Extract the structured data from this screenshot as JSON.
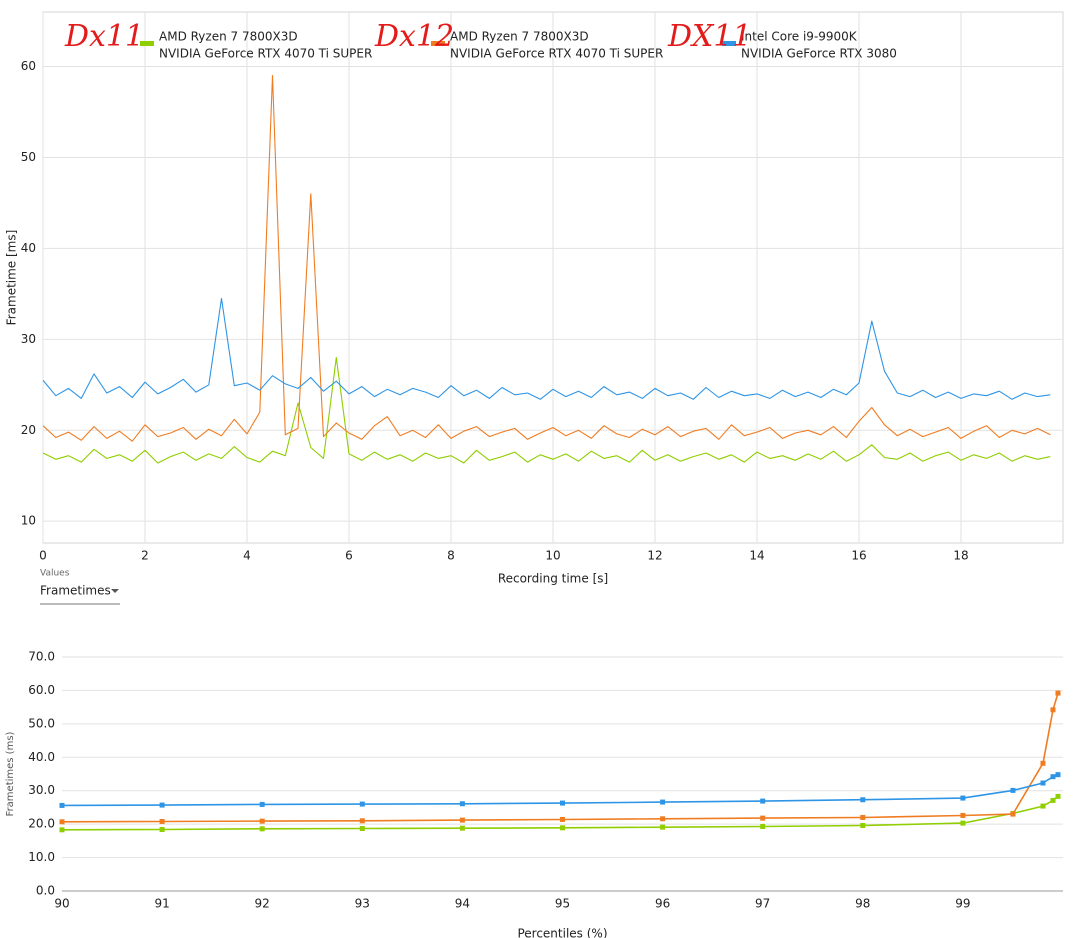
{
  "chart_data": [
    {
      "type": "line",
      "annotations": [
        "Dx11",
        "Dx12",
        "DX11"
      ],
      "xlabel": "Recording time [s]",
      "ylabel": "Frametime [ms]",
      "xlim": [
        0,
        20
      ],
      "xticks": [
        0,
        2,
        4,
        6,
        8,
        10,
        12,
        14,
        16,
        18
      ],
      "ylim": [
        7.6,
        66
      ],
      "yticks": [
        10,
        20,
        30,
        40,
        50,
        60
      ],
      "grid": true,
      "x": [
        0,
        0.25,
        0.5,
        0.75,
        1,
        1.25,
        1.5,
        1.75,
        2,
        2.25,
        2.5,
        2.75,
        3,
        3.25,
        3.5,
        3.75,
        4,
        4.25,
        4.5,
        4.75,
        5,
        5.25,
        5.5,
        5.75,
        6,
        6.25,
        6.5,
        6.75,
        7,
        7.25,
        7.5,
        7.75,
        8,
        8.25,
        8.5,
        8.75,
        9,
        9.25,
        9.5,
        9.75,
        10,
        10.25,
        10.5,
        10.75,
        11,
        11.25,
        11.5,
        11.75,
        12,
        12.25,
        12.5,
        12.75,
        13,
        13.25,
        13.5,
        13.75,
        14,
        14.25,
        14.5,
        14.75,
        15,
        15.25,
        15.5,
        15.75,
        16,
        16.25,
        16.5,
        16.75,
        17,
        17.25,
        17.5,
        17.75,
        18,
        18.25,
        18.5,
        18.75,
        19,
        19.25,
        19.5,
        19.75
      ],
      "series": [
        {
          "name": [
            "AMD Ryzen 7 7800X3D",
            "NVIDIA GeForce RTX 4070 Ti SUPER"
          ],
          "color": "#8fce00",
          "values": [
            17.5,
            16.8,
            17.2,
            16.5,
            17.9,
            16.9,
            17.3,
            16.6,
            17.8,
            16.4,
            17.1,
            17.6,
            16.7,
            17.4,
            16.9,
            18.2,
            17.0,
            16.5,
            17.7,
            17.2,
            23.0,
            18.1,
            16.9,
            28.0,
            17.4,
            16.7,
            17.6,
            16.8,
            17.3,
            16.6,
            17.5,
            16.9,
            17.2,
            16.4,
            17.8,
            16.7,
            17.1,
            17.6,
            16.5,
            17.3,
            16.8,
            17.4,
            16.6,
            17.7,
            16.9,
            17.2,
            16.5,
            17.8,
            16.7,
            17.3,
            16.6,
            17.1,
            17.5,
            16.8,
            17.3,
            16.5,
            17.6,
            16.9,
            17.2,
            16.7,
            17.4,
            16.8,
            17.7,
            16.6,
            17.3,
            18.4,
            17.0,
            16.8,
            17.5,
            16.6,
            17.2,
            17.6,
            16.7,
            17.3,
            16.9,
            17.5,
            16.6,
            17.2,
            16.8,
            17.1
          ]
        },
        {
          "name": [
            "AMD Ryzen 7 7800X3D",
            "NVIDIA GeForce RTX 4070 Ti SUPER"
          ],
          "color": "#f07c22",
          "values": [
            20.5,
            19.2,
            19.8,
            18.9,
            20.4,
            19.1,
            19.9,
            18.8,
            20.6,
            19.3,
            19.7,
            20.3,
            19.0,
            20.1,
            19.4,
            21.2,
            19.6,
            22.0,
            59.0,
            19.5,
            20.2,
            46.0,
            19.3,
            20.8,
            19.7,
            19.0,
            20.5,
            21.5,
            19.4,
            20.0,
            19.2,
            20.6,
            19.1,
            19.9,
            20.4,
            19.3,
            19.8,
            20.2,
            19.0,
            19.7,
            20.3,
            19.4,
            20.0,
            19.1,
            20.5,
            19.6,
            19.2,
            20.1,
            19.5,
            20.4,
            19.3,
            19.9,
            20.2,
            19.0,
            20.6,
            19.4,
            19.8,
            20.3,
            19.1,
            19.7,
            20.0,
            19.5,
            20.4,
            19.2,
            21.0,
            22.5,
            20.6,
            19.4,
            20.1,
            19.3,
            19.8,
            20.3,
            19.1,
            19.9,
            20.5,
            19.2,
            20.0,
            19.6,
            20.2,
            19.5
          ]
        },
        {
          "name": [
            "Intel Core i9-9900K",
            "NVIDIA GeForce RTX 3080"
          ],
          "color": "#2e95e6",
          "values": [
            25.5,
            23.8,
            24.6,
            23.5,
            26.2,
            24.1,
            24.8,
            23.6,
            25.3,
            24.0,
            24.7,
            25.6,
            24.2,
            25.0,
            34.5,
            24.9,
            25.2,
            24.4,
            26.0,
            25.1,
            24.6,
            25.8,
            24.3,
            25.4,
            24.0,
            24.8,
            23.7,
            24.5,
            23.9,
            24.6,
            24.2,
            23.6,
            24.9,
            23.8,
            24.4,
            23.5,
            24.7,
            23.9,
            24.1,
            23.4,
            24.5,
            23.7,
            24.3,
            23.6,
            24.8,
            23.9,
            24.2,
            23.5,
            24.6,
            23.8,
            24.1,
            23.4,
            24.7,
            23.6,
            24.3,
            23.8,
            24.0,
            23.5,
            24.4,
            23.7,
            24.2,
            23.6,
            24.5,
            23.9,
            25.2,
            32.0,
            26.5,
            24.1,
            23.7,
            24.4,
            23.6,
            24.2,
            23.5,
            24.0,
            23.8,
            24.3,
            23.4,
            24.1,
            23.7,
            23.9
          ]
        }
      ]
    },
    {
      "type": "line",
      "markers": true,
      "xlabel": "Percentiles (%)",
      "ylabel": "Frametimes (ms)",
      "xlim": [
        90,
        100
      ],
      "xticks": [
        90,
        91,
        92,
        93,
        94,
        95,
        96,
        97,
        98,
        99
      ],
      "ylim": [
        0,
        70
      ],
      "grid": true,
      "yticks": [
        {
          "value": 0,
          "label": "0.0"
        },
        {
          "value": 10,
          "label": "10.0"
        },
        {
          "value": 20,
          "label": "20.0"
        },
        {
          "value": 30,
          "label": "30.0"
        },
        {
          "value": 40,
          "label": "40.0"
        },
        {
          "value": 50,
          "label": "50.0"
        },
        {
          "value": 60,
          "label": "60.0"
        },
        {
          "value": 70,
          "label": "70.0"
        }
      ],
      "x": [
        90,
        91,
        92,
        93,
        94,
        95,
        96,
        97,
        98,
        99,
        99.5,
        99.8,
        99.9,
        99.95
      ],
      "series": [
        {
          "color": "#8fce00",
          "values": [
            18.3,
            18.4,
            18.6,
            18.7,
            18.8,
            18.9,
            19.1,
            19.3,
            19.6,
            20.3,
            23.2,
            25.4,
            27.1,
            28.3
          ]
        },
        {
          "color": "#f07c22",
          "values": [
            20.7,
            20.8,
            20.9,
            21.0,
            21.2,
            21.4,
            21.6,
            21.8,
            22.0,
            22.6,
            23.0,
            38.2,
            54.2,
            59.2
          ]
        },
        {
          "color": "#2e95e6",
          "values": [
            25.6,
            25.7,
            25.9,
            26.0,
            26.1,
            26.3,
            26.6,
            26.9,
            27.3,
            27.8,
            30.1,
            32.3,
            34.2,
            34.8
          ]
        }
      ]
    }
  ],
  "controls": {
    "dropdown_label": "Values",
    "dropdown_value": "Frametimes"
  }
}
